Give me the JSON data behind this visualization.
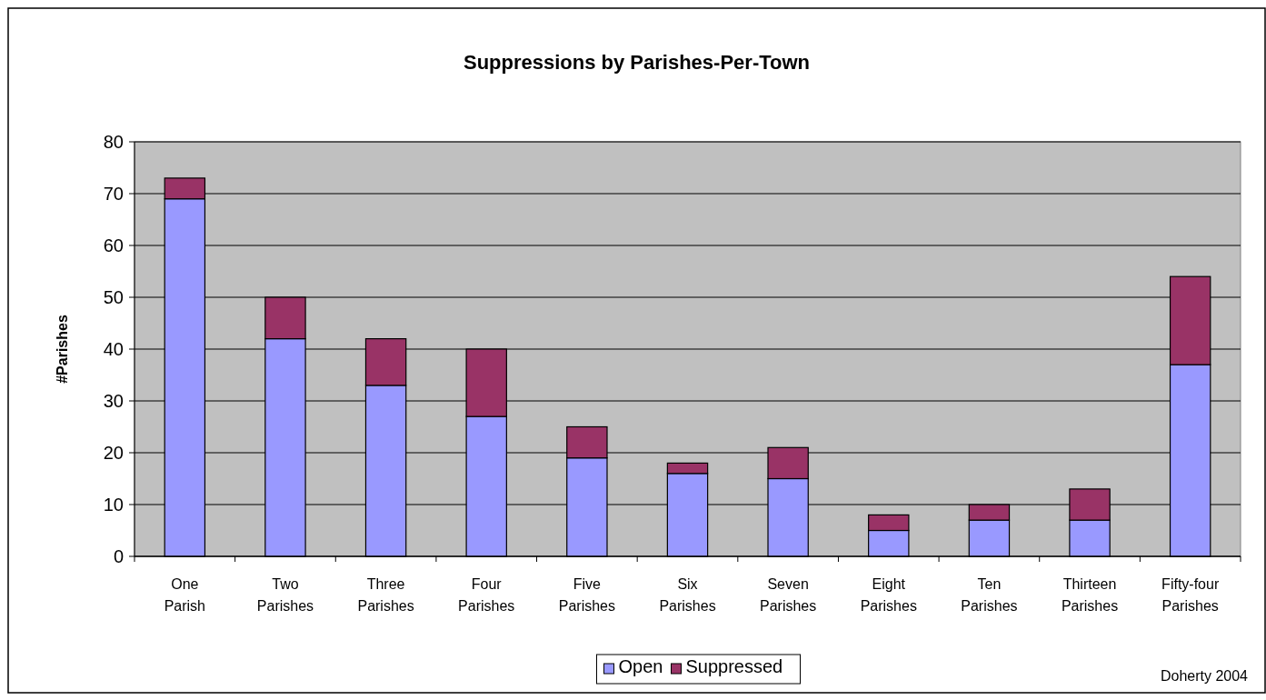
{
  "chart_data": {
    "type": "bar",
    "title": "Suppressions by Parishes-Per-Town",
    "ylabel": "#Parishes",
    "categories": [
      "One Parish",
      "Two Parishes",
      "Three Parishes",
      "Four Parishes",
      "Five Parishes",
      "Six Parishes",
      "Seven Parishes",
      "Eight Parishes",
      "Ten Parishes",
      "Thirteen Parishes",
      "Fifty-four Parishes"
    ],
    "series": [
      {
        "name": "Open",
        "color": "#9999ff",
        "values": [
          69,
          42,
          33,
          27,
          19,
          16,
          15,
          5,
          7,
          7,
          37
        ]
      },
      {
        "name": "Suppressed",
        "color": "#993366",
        "values": [
          4,
          8,
          9,
          13,
          6,
          2,
          6,
          3,
          3,
          6,
          17
        ]
      }
    ],
    "stacked": true,
    "ylim": [
      0,
      80
    ],
    "yticks": [
      0,
      10,
      20,
      30,
      40,
      50,
      60,
      70,
      80
    ],
    "grid": "y",
    "legend": "bottom",
    "annotations": [
      "Doherty 2004"
    ]
  }
}
